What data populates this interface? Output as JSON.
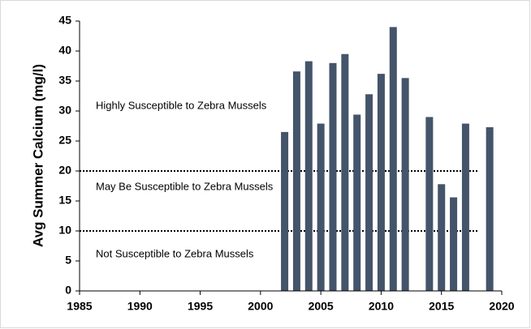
{
  "chart_data": {
    "type": "bar",
    "y_label": "Avg Summer Calcium (mg/l)",
    "x": [
      2002,
      2003,
      2004,
      2005,
      2006,
      2007,
      2008,
      2009,
      2010,
      2011,
      2012,
      2014,
      2015,
      2016,
      2017,
      2019
    ],
    "values": [
      26.5,
      36.6,
      38.3,
      27.9,
      38.0,
      39.5,
      29.4,
      32.8,
      36.2,
      44.0,
      35.5,
      29.0,
      17.8,
      15.6,
      27.9,
      27.3
    ],
    "color": "#44546a",
    "xlim": [
      1985,
      2020
    ],
    "xticks": [
      1985,
      1990,
      1995,
      2000,
      2005,
      2010,
      2015,
      2020
    ],
    "ylim": [
      0,
      45
    ],
    "yticks": [
      0,
      5,
      10,
      15,
      20,
      25,
      30,
      35,
      40,
      45
    ],
    "reference_lines": [
      20,
      10
    ],
    "annotations": [
      "Highly Susceptible to Zebra Mussels",
      "May Be Susceptible to Zebra Mussels",
      "Not Susceptible to Zebra Mussels"
    ],
    "grid": false
  }
}
